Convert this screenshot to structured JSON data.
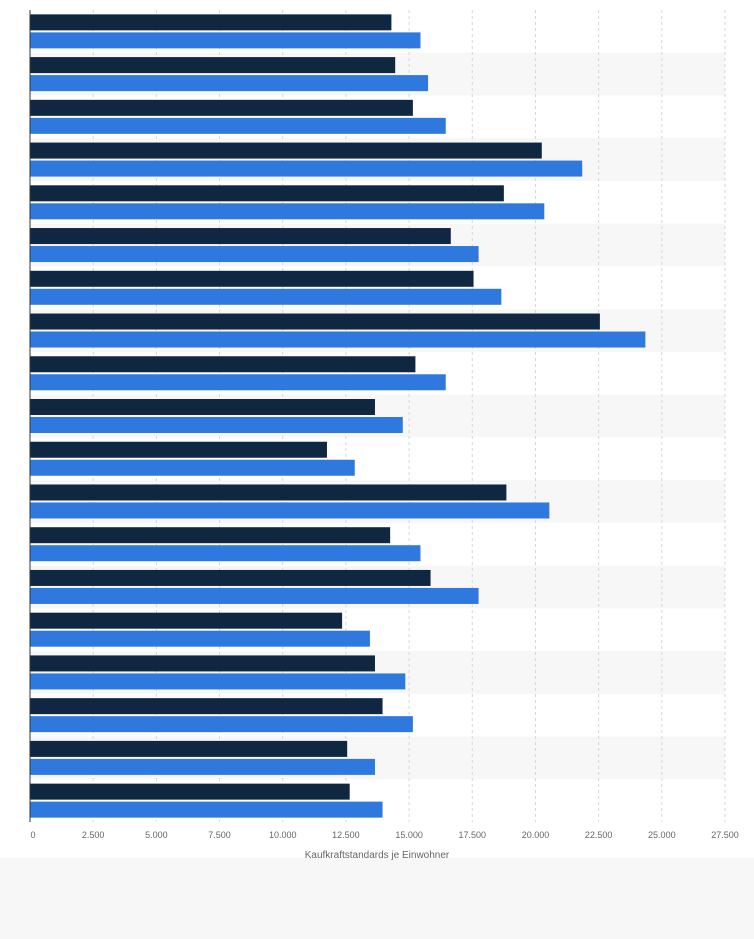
{
  "chart_data": {
    "type": "bar",
    "orientation": "horizontal",
    "categories": [
      "",
      "",
      "",
      "",
      "",
      "",
      "",
      "",
      "",
      "",
      "",
      "",
      "",
      "",
      "",
      "",
      "",
      "",
      ""
    ],
    "series": [
      {
        "color": "#0f2740",
        "values": [
          14300,
          14450,
          15150,
          20250,
          18750,
          16650,
          17550,
          22550,
          15250,
          13650,
          11750,
          18850,
          14250,
          15850,
          12350,
          13650,
          13950,
          12550,
          12650
        ]
      },
      {
        "color": "#2f78de",
        "values": [
          15450,
          15750,
          16450,
          21850,
          20350,
          17750,
          18650,
          24350,
          16450,
          14750,
          12850,
          20550,
          15450,
          17750,
          13450,
          14850,
          15150,
          13650,
          13950
        ]
      }
    ],
    "xlim": [
      0,
      27500
    ],
    "xticks": [
      0,
      2500,
      5000,
      7500,
      10000,
      12500,
      15000,
      17500,
      20000,
      22500,
      25000,
      27500
    ],
    "xtick_labels": [
      "0",
      "2.500",
      "5.000",
      "7.500",
      "10.000",
      "12.500",
      "15.000",
      "17.500",
      "20.000",
      "22.500",
      "25.000",
      "27.500"
    ],
    "xlabel": "Kaufkraftstandards je Einwohner",
    "ylabel": "",
    "title": "",
    "grid": "vertical dashed",
    "legend": "none"
  }
}
